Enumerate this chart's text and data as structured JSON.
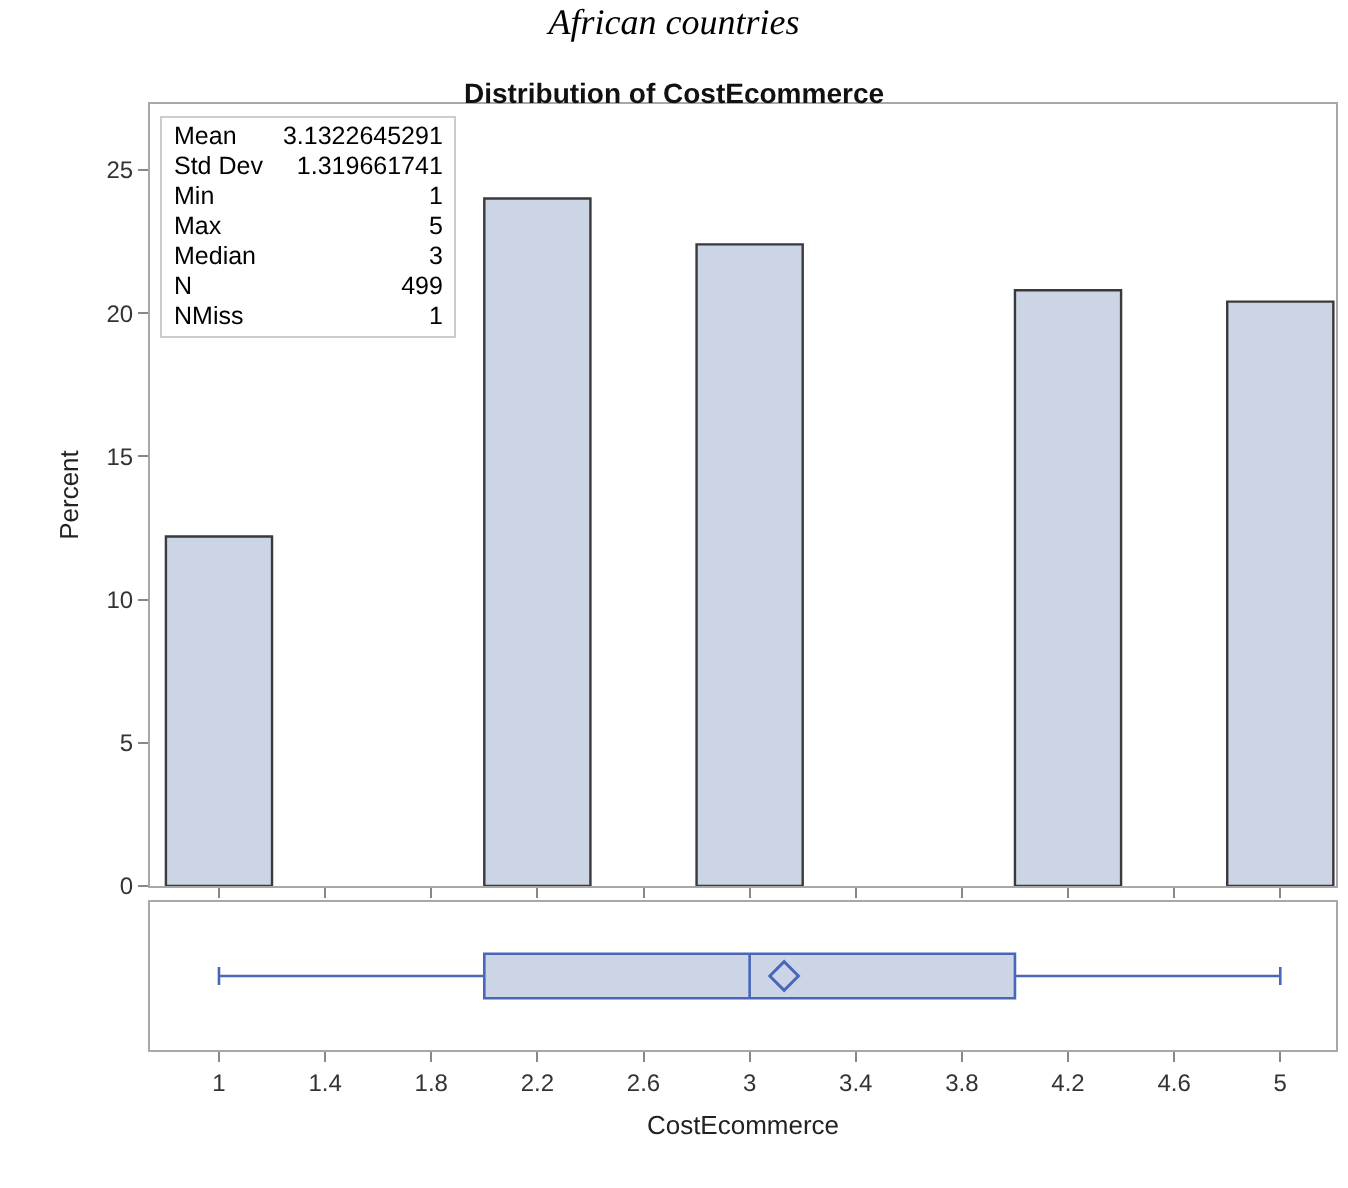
{
  "chart_data": [
    {
      "type": "histogram",
      "title": "Distribution of CostEcommerce",
      "ylabel": "Percent",
      "annotations": [
        "African countries",
        "Mean",
        "3.1322645291",
        "Std Dev",
        "1.319661741",
        "Min",
        "1",
        "Max",
        "5",
        "Median",
        "3",
        "N",
        "499",
        "NMiss",
        "1"
      ],
      "bins": [
        0.8,
        1.2,
        1.6,
        2.0,
        2.4,
        2.8,
        3.2,
        3.6,
        4.0,
        4.4,
        4.8,
        5.2
      ],
      "series": [
        {
          "color": "#cbd5e5",
          "values": [
            12.2,
            0,
            0,
            24.0,
            0,
            22.4,
            0,
            0,
            20.8,
            0,
            20.4
          ]
        }
      ],
      "xlim": [
        0.74,
        5.21
      ],
      "ylim": [
        0,
        27.3
      ],
      "yticks": [
        0,
        5,
        10,
        15,
        20,
        25
      ],
      "tick_labels": "y"
    },
    {
      "type": "box",
      "orientation": "horizontal",
      "xlabel": "CostEcommerce",
      "categories": [
        null
      ],
      "series": [
        {
          "color": "#cbd5e5",
          "boxes": [
            {
              "low": 1,
              "q1": 2,
              "median": 3,
              "q3": 4,
              "high": 5,
              "mean": 3.13
            }
          ]
        }
      ],
      "xlim": [
        0.74,
        5.21
      ],
      "xticks": [
        1,
        1.4,
        1.8,
        2.2,
        2.6,
        3,
        3.4,
        3.8,
        4.2,
        4.6,
        5
      ],
      "tick_labels": "x"
    }
  ]
}
